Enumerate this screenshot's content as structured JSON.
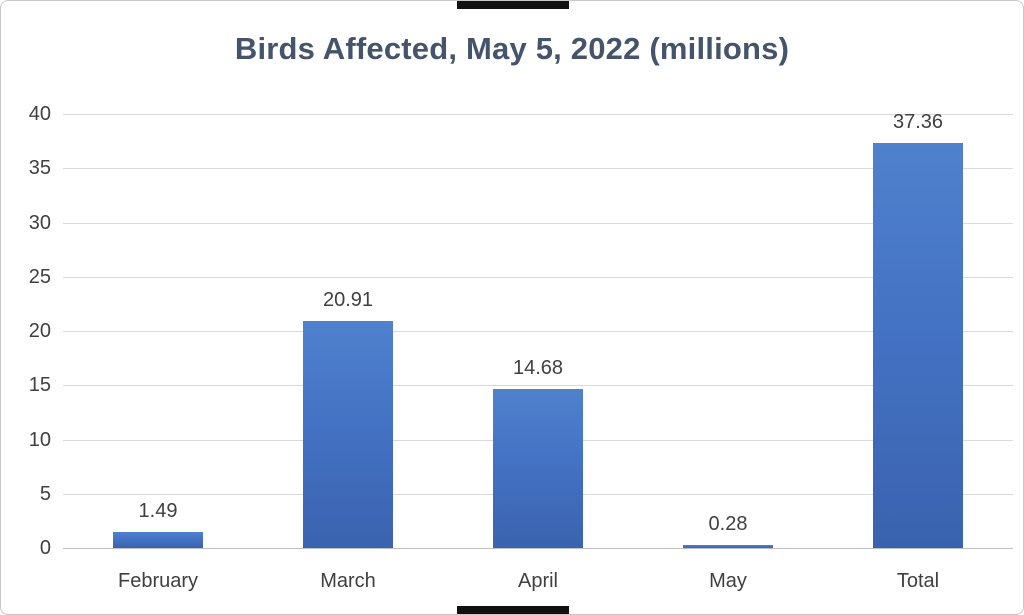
{
  "chart_data": {
    "type": "bar",
    "title": "Birds Affected, May 5, 2022 (millions)",
    "categories": [
      "February",
      "March",
      "April",
      "May",
      "Total"
    ],
    "values": [
      1.49,
      20.91,
      14.68,
      0.28,
      37.36
    ],
    "data_labels": [
      "1.49",
      "20.91",
      "14.68",
      "0.28",
      "37.36"
    ],
    "xlabel": "",
    "ylabel": "",
    "ylim": [
      0,
      40
    ],
    "yticks": [
      0,
      5,
      10,
      15,
      20,
      25,
      30,
      35,
      40
    ],
    "grid": true,
    "legend": "none",
    "colors": {
      "bar_top": "#4f81cd",
      "bar_bottom": "#3a63ae",
      "title": "#44546a",
      "axis_text": "#404040",
      "gridline": "#d9d9d9",
      "axis_line": "#bfbfbf",
      "background": "#ffffff",
      "border": "#c9c9c9",
      "edge_bar": "#111111"
    }
  }
}
